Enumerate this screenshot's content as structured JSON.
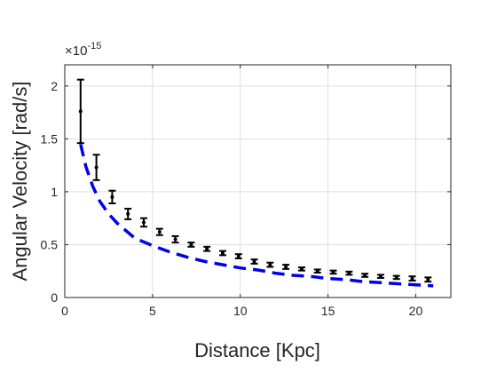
{
  "chart_data": {
    "type": "scatter",
    "title": "",
    "xlabel": "Distance [Kpc]",
    "ylabel": "Angular Velocity [rad/s]",
    "y_exponent_label": "×10",
    "y_exponent_power": "-15",
    "xlim": [
      0,
      22
    ],
    "ylim": [
      0,
      2.2
    ],
    "x_ticks": [
      0,
      5,
      10,
      15,
      20
    ],
    "y_ticks": [
      0,
      0.5,
      1,
      1.5,
      2
    ],
    "x_tick_labels": [
      "0",
      "5",
      "10",
      "15",
      "20"
    ],
    "y_tick_labels": [
      "0",
      "0.5",
      "1",
      "1.5",
      "2"
    ],
    "grid": true,
    "series": [
      {
        "kind": "errorbar",
        "color": "#000000",
        "x": [
          0.9,
          1.8,
          2.7,
          3.6,
          4.5,
          5.4,
          6.3,
          7.2,
          8.1,
          9.0,
          9.9,
          10.8,
          11.7,
          12.6,
          13.5,
          14.4,
          15.3,
          16.2,
          17.1,
          18.0,
          18.9,
          19.8,
          20.7
        ],
        "y": [
          1.76,
          1.23,
          0.95,
          0.79,
          0.71,
          0.62,
          0.55,
          0.5,
          0.46,
          0.42,
          0.39,
          0.34,
          0.31,
          0.29,
          0.27,
          0.25,
          0.24,
          0.23,
          0.21,
          0.2,
          0.19,
          0.18,
          0.17
        ],
        "err": [
          0.3,
          0.12,
          0.06,
          0.05,
          0.04,
          0.03,
          0.03,
          0.02,
          0.02,
          0.02,
          0.02,
          0.02,
          0.02,
          0.02,
          0.015,
          0.015,
          0.015,
          0.015,
          0.015,
          0.015,
          0.015,
          0.02,
          0.02
        ]
      },
      {
        "kind": "line",
        "color": "#0000e6",
        "dash": true,
        "x": [
          0.9,
          1.2,
          1.6,
          2.0,
          2.5,
          3.0,
          3.5,
          4.0,
          5.0,
          6.0,
          7.0,
          8.0,
          9.0,
          10.0,
          11.0,
          12.0,
          13.0,
          14.0,
          15.0,
          16.0,
          17.0,
          18.0,
          19.0,
          20.0,
          21.0
        ],
        "y": [
          1.45,
          1.24,
          1.05,
          0.91,
          0.79,
          0.7,
          0.63,
          0.56,
          0.49,
          0.43,
          0.38,
          0.34,
          0.31,
          0.28,
          0.26,
          0.23,
          0.21,
          0.2,
          0.18,
          0.17,
          0.15,
          0.14,
          0.13,
          0.12,
          0.11
        ]
      }
    ]
  }
}
